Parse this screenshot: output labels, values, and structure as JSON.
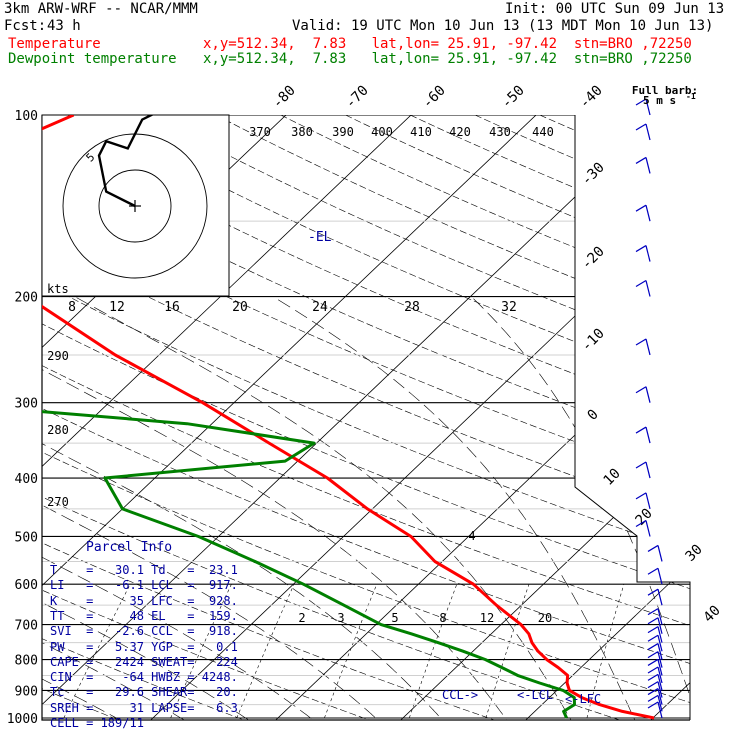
{
  "header": {
    "model": "3km ARW-WRF -- NCAR/MMM",
    "init": "Init: 00 UTC Sun 09 Jun 13",
    "fcst_label": "Fcst:",
    "fcst_value": "43 h",
    "valid": "Valid: 19 UTC Mon 10 Jun 13 (13 MDT Mon 10 Jun 13)",
    "temperature_label": "Temperature",
    "dewpoint_label": "Dewpoint temperature",
    "location_info": "x,y=512.34,  7.83   lat,lon= 25.91, -97.42  stn=BRO ,72250"
  },
  "colors": {
    "temperature": "#ff0000",
    "dewpoint": "#008000",
    "parcel_text": "#0000a0",
    "wind_barbs": "#0000c0"
  },
  "barb_legend": {
    "line1": "Full barb:",
    "line2": "5 m s",
    "superscript": "-1"
  },
  "hodograph": {
    "units": "kts",
    "ring_label": "5"
  },
  "parcel_info": {
    "title": "Parcel Info",
    "rows": [
      [
        "T",
        "30.1",
        "Td",
        "23.1"
      ],
      [
        "LI",
        "-6.1",
        "LCL",
        "917."
      ],
      [
        "K",
        "35",
        "LFC",
        "928."
      ],
      [
        "TT",
        "48",
        "EL",
        "159."
      ],
      [
        "SVI",
        "-2.6",
        "CCL",
        "918."
      ],
      [
        "PW",
        "5.37",
        "YGP",
        "0.1"
      ],
      [
        "CAPE",
        "2424",
        "SWEAT",
        "224"
      ],
      [
        "CIN",
        "-64",
        "HWBZ",
        "4248."
      ],
      [
        "Tc",
        "29.6",
        "SHEAR",
        "20."
      ],
      [
        "SREH",
        "31",
        "LAPSE",
        "6.3"
      ]
    ],
    "cell_label": "CELL",
    "cell_value": "189/11"
  },
  "level_markers": {
    "el": "-EL",
    "ccl": "CCL->",
    "lcl": "<-LCL",
    "lfc": "<-LFC"
  },
  "chart_data": {
    "type": "line",
    "title": "",
    "xlabel": "",
    "ylabel": "",
    "y_axis": "pressure (hPa), log scale, inverted",
    "pressure_levels": [
      100,
      200,
      300,
      400,
      500,
      600,
      700,
      800,
      900,
      1000
    ],
    "pressure_tick_labels": [
      "100",
      "200",
      "300",
      "400",
      "500",
      "600",
      "700",
      "800",
      "900",
      "1000"
    ],
    "isotherm_labels": [
      "-80",
      "-70",
      "-60",
      "-50",
      "-40",
      "-30",
      "-20",
      "-10",
      "0",
      "10",
      "20",
      "30",
      "40"
    ],
    "theta_labels_top": [
      "370",
      "380",
      "390",
      "400",
      "410",
      "420",
      "430",
      "440"
    ],
    "theta_labels_left": [
      "290",
      "280",
      "270"
    ],
    "mixing_ratio_labels_upper": [
      "8",
      "12",
      "16",
      "20",
      "24",
      "28",
      "32"
    ],
    "mixing_ratio_labels_lower": [
      "2",
      "3",
      "5",
      "8",
      "12",
      "20"
    ],
    "annotation_lower_4": "4",
    "series": [
      {
        "name": "Temperature",
        "color": "#ff0000",
        "pressure": [
          1000,
          975,
          950,
          925,
          900,
          875,
          850,
          825,
          800,
          775,
          750,
          725,
          700,
          650,
          600,
          550,
          500,
          450,
          400,
          350,
          300,
          250,
          200,
          175,
          150,
          125,
          110,
          100
        ],
        "temperature": [
          30.1,
          27.0,
          24.6,
          22.6,
          21.0,
          20.2,
          19.6,
          18.2,
          16.6,
          15.2,
          14.0,
          13.0,
          11.6,
          8.0,
          4.4,
          -0.6,
          -4.6,
          -10.4,
          -16.2,
          -23.8,
          -32.5,
          -43.5,
          -55.5,
          -62.5,
          -71.0,
          -71.5,
          -69.5,
          -67.0
        ]
      },
      {
        "name": "Dewpoint temperature",
        "color": "#008000",
        "pressure": [
          1000,
          975,
          950,
          925,
          900,
          875,
          850,
          825,
          800,
          775,
          750,
          725,
          700,
          650,
          600,
          550,
          500,
          450,
          400,
          375,
          350,
          325,
          300,
          285,
          275,
          250,
          225,
          200,
          175,
          150,
          125,
          110,
          100
        ],
        "temperature": [
          23.1,
          22.3,
          22.6,
          22.0,
          20.5,
          18.0,
          15.6,
          13.7,
          11.7,
          9.2,
          6.5,
          3.6,
          0.4,
          -4.2,
          -9.2,
          -15.0,
          -21.6,
          -30.0,
          -34.0,
          -21.0,
          -20.2,
          -32.0,
          -54.0,
          -67.0,
          -66.0,
          -70.0,
          -79.0,
          -86.0,
          -86.5,
          -88.0,
          -90.0,
          -92.5,
          -94.0
        ]
      }
    ],
    "wind_profile_pressure": [
      1000,
      975,
      950,
      925,
      900,
      875,
      850,
      825,
      800,
      775,
      750,
      725,
      700,
      650,
      600,
      550,
      500,
      450,
      400,
      350,
      300,
      250,
      200,
      175,
      150,
      125,
      110,
      100
    ],
    "hodograph_path_kts": [
      [
        0,
        0
      ],
      [
        -4,
        2
      ],
      [
        -5,
        7
      ],
      [
        -4,
        9
      ],
      [
        -1,
        8
      ],
      [
        1,
        12
      ],
      [
        5,
        14
      ],
      [
        5,
        19
      ],
      [
        12,
        20
      ]
    ],
    "hodograph_ring_kts": [
      5,
      10
    ]
  }
}
